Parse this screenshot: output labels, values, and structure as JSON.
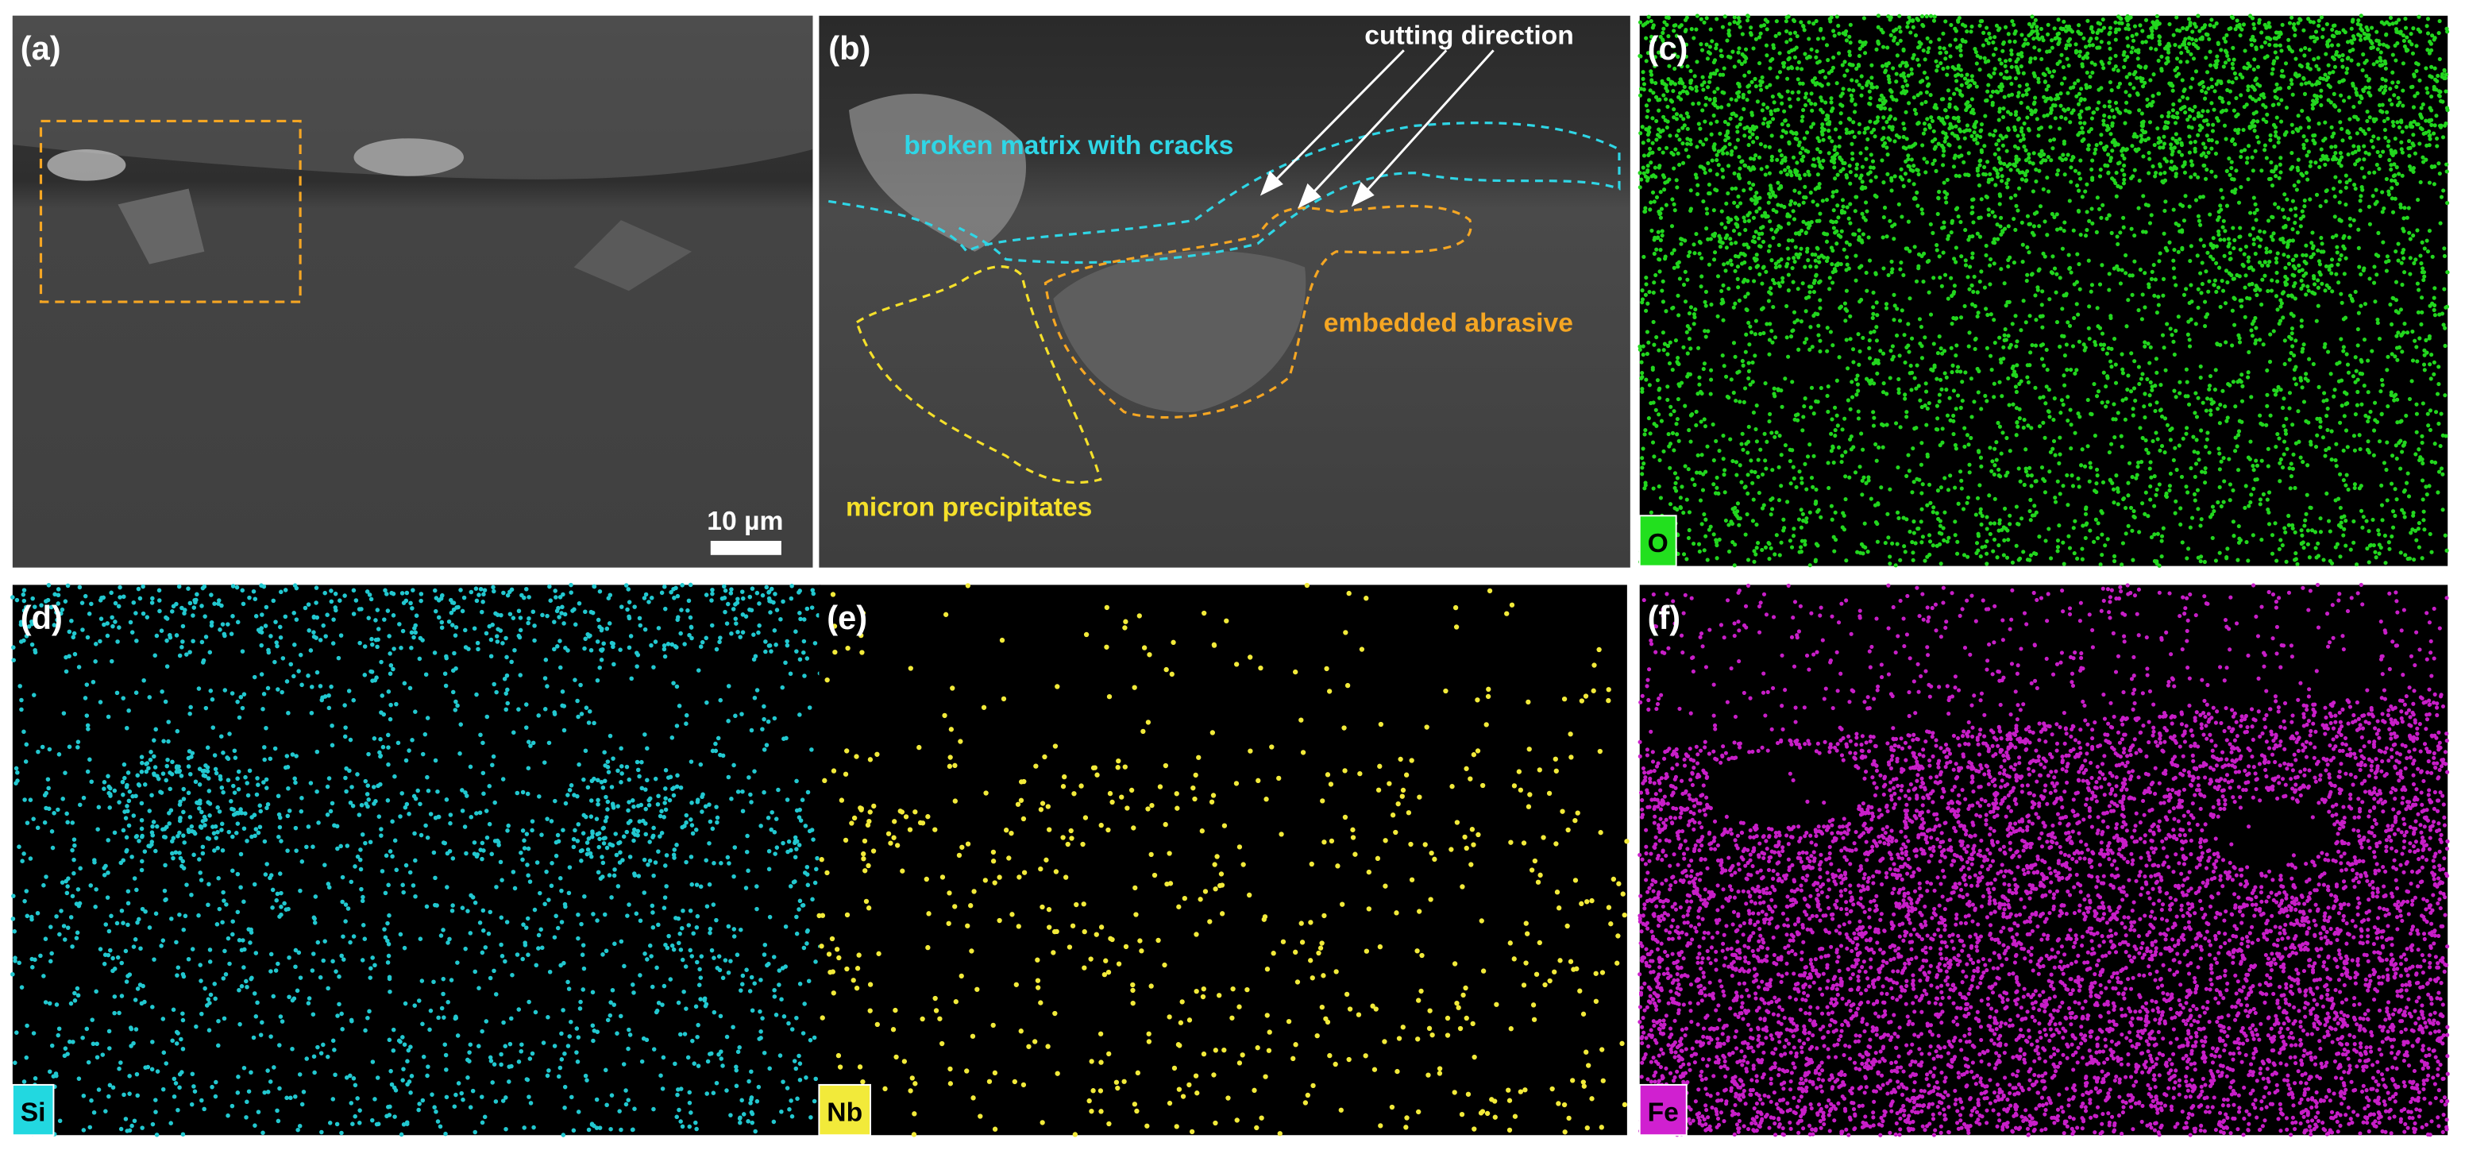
{
  "panels": [
    {
      "label": "(a)",
      "scale_bar": "10 µm"
    },
    {
      "label": "(b)",
      "annotations": [
        "cutting direction",
        "broken matrix with cracks",
        "embedded abrasive",
        "micron precipitates"
      ]
    },
    {
      "label": "(c)",
      "element": "O"
    },
    {
      "label": "(d)",
      "element": "Si"
    },
    {
      "label": "(e)",
      "element": "Nb"
    },
    {
      "label": "(f)",
      "element": "Fe"
    }
  ]
}
